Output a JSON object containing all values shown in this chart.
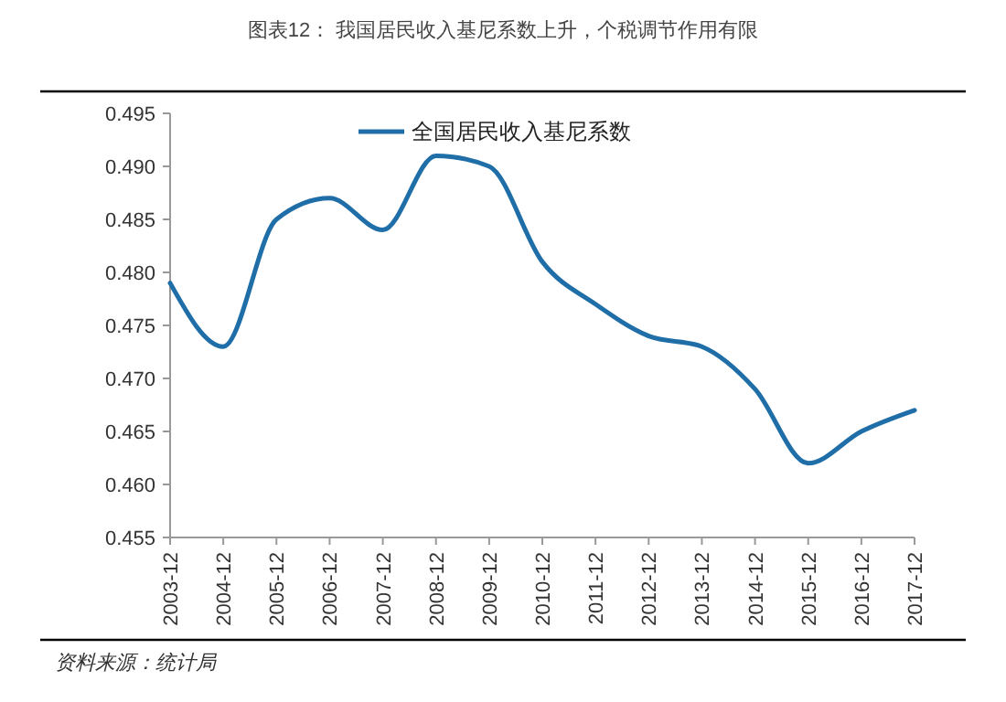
{
  "chart_data": {
    "type": "line",
    "title": "图表12：  我国居民收入基尼系数上升，个税调节作用有限",
    "categories": [
      "2003-12",
      "2004-12",
      "2005-12",
      "2006-12",
      "2007-12",
      "2008-12",
      "2009-12",
      "2010-12",
      "2011-12",
      "2012-12",
      "2013-12",
      "2014-12",
      "2015-12",
      "2016-12",
      "2017-12"
    ],
    "series": [
      {
        "name": "全国居民收入基尼系数",
        "color": "#1f6ea8",
        "values": [
          0.479,
          0.473,
          0.485,
          0.487,
          0.484,
          0.491,
          0.49,
          0.481,
          0.477,
          0.474,
          0.473,
          0.469,
          0.462,
          0.465,
          0.467
        ]
      }
    ],
    "ylim": [
      0.455,
      0.495
    ],
    "yticks": [
      {
        "value": 0.455,
        "label": "0.455"
      },
      {
        "value": 0.46,
        "label": "0.460"
      },
      {
        "value": 0.465,
        "label": "0.465"
      },
      {
        "value": 0.47,
        "label": "0.470"
      },
      {
        "value": 0.475,
        "label": "0.475"
      },
      {
        "value": 0.48,
        "label": "0.480"
      },
      {
        "value": 0.485,
        "label": "0.485"
      },
      {
        "value": 0.49,
        "label": "0.490"
      },
      {
        "value": 0.495,
        "label": "0.495"
      }
    ],
    "legend": "top",
    "grid": false,
    "marker": "none",
    "line_style": "solid",
    "annotations": [
      "资料来源：统计局"
    ]
  }
}
